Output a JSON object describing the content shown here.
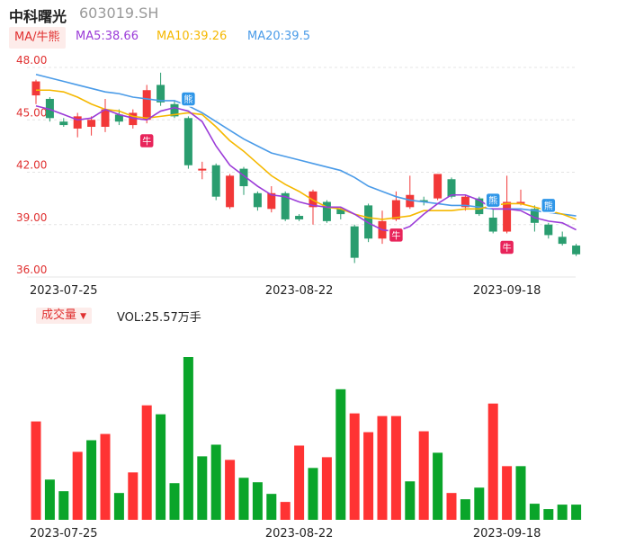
{
  "header": {
    "name": "中科曙光",
    "code": "603019.SH",
    "ma_tag": "MA/牛熊",
    "ma5": "MA5:38.66",
    "ma10": "MA10:39.26",
    "ma20": "MA20:39.5",
    "vol_tag": "成交量",
    "vol_value": "VOL:25.57万手"
  },
  "colors": {
    "up": "#f23838",
    "down": "#2a9d6f",
    "vol_up": "#ff3333",
    "vol_down": "#0aa52a",
    "ma5": "#9b3bd8",
    "ma10": "#f5b800",
    "ma20": "#4a9be8",
    "grid": "#e4e4e4",
    "axis_text": "#e03030"
  },
  "chart_data": [
    {
      "type": "candlestick",
      "y_ticks": [
        "48.00",
        "45.00",
        "42.00",
        "39.00",
        "36.00"
      ],
      "ylim": [
        36,
        48
      ],
      "x_ticks": [
        {
          "index": 2,
          "label": "2023-07-25"
        },
        {
          "index": 19,
          "label": "2023-08-22"
        },
        {
          "index": 34,
          "label": "2023-09-18"
        }
      ],
      "candles": [
        {
          "o": 46.4,
          "c": 47.2,
          "h": 47.3,
          "l": 45.9
        },
        {
          "o": 46.2,
          "c": 45.1,
          "h": 46.3,
          "l": 44.9
        },
        {
          "o": 44.9,
          "c": 44.7,
          "h": 45.1,
          "l": 44.6
        },
        {
          "o": 44.5,
          "c": 45.2,
          "h": 45.4,
          "l": 44.0
        },
        {
          "o": 44.6,
          "c": 45.0,
          "h": 45.2,
          "l": 44.1
        },
        {
          "o": 44.6,
          "c": 45.6,
          "h": 46.2,
          "l": 44.3
        },
        {
          "o": 45.3,
          "c": 44.9,
          "h": 45.6,
          "l": 44.7
        },
        {
          "o": 44.7,
          "c": 45.4,
          "h": 45.6,
          "l": 44.5
        },
        {
          "o": 45.0,
          "c": 46.7,
          "h": 47.0,
          "l": 44.8
        },
        {
          "o": 47.0,
          "c": 46.0,
          "h": 47.7,
          "l": 45.8
        },
        {
          "o": 45.9,
          "c": 45.2,
          "h": 46.1,
          "l": 45.1
        },
        {
          "o": 45.1,
          "c": 42.4,
          "h": 45.2,
          "l": 42.2
        },
        {
          "o": 42.1,
          "c": 42.2,
          "h": 42.6,
          "l": 41.6
        },
        {
          "o": 42.4,
          "c": 40.6,
          "h": 42.5,
          "l": 40.4
        },
        {
          "o": 40.0,
          "c": 41.8,
          "h": 41.9,
          "l": 39.9
        },
        {
          "o": 42.2,
          "c": 41.2,
          "h": 42.3,
          "l": 40.7
        },
        {
          "o": 40.8,
          "c": 40.0,
          "h": 40.9,
          "l": 39.8
        },
        {
          "o": 39.9,
          "c": 40.8,
          "h": 41.2,
          "l": 39.7
        },
        {
          "o": 40.8,
          "c": 39.3,
          "h": 40.9,
          "l": 39.2
        },
        {
          "o": 39.5,
          "c": 39.3,
          "h": 39.6,
          "l": 39.2
        },
        {
          "o": 40.0,
          "c": 40.9,
          "h": 41.0,
          "l": 39.0
        },
        {
          "o": 40.3,
          "c": 39.2,
          "h": 40.4,
          "l": 39.1
        },
        {
          "o": 39.9,
          "c": 39.6,
          "h": 40.0,
          "l": 39.3
        },
        {
          "o": 38.9,
          "c": 37.1,
          "h": 39.0,
          "l": 36.8
        },
        {
          "o": 40.1,
          "c": 38.2,
          "h": 40.2,
          "l": 38.0
        },
        {
          "o": 38.2,
          "c": 39.2,
          "h": 39.8,
          "l": 37.9
        },
        {
          "o": 39.3,
          "c": 40.4,
          "h": 40.9,
          "l": 39.2
        },
        {
          "o": 40.0,
          "c": 40.7,
          "h": 41.8,
          "l": 39.9
        },
        {
          "o": 40.4,
          "c": 40.3,
          "h": 40.6,
          "l": 40.1
        },
        {
          "o": 40.5,
          "c": 41.9,
          "h": 41.9,
          "l": 40.4
        },
        {
          "o": 41.6,
          "c": 40.6,
          "h": 41.7,
          "l": 40.5
        },
        {
          "o": 40.0,
          "c": 40.6,
          "h": 40.7,
          "l": 39.8
        },
        {
          "o": 40.5,
          "c": 39.6,
          "h": 40.6,
          "l": 39.5
        },
        {
          "o": 39.4,
          "c": 38.6,
          "h": 39.9,
          "l": 38.5
        },
        {
          "o": 38.6,
          "c": 40.3,
          "h": 41.8,
          "l": 38.5
        },
        {
          "o": 40.3,
          "c": 40.3,
          "h": 41.0,
          "l": 40.1
        },
        {
          "o": 39.9,
          "c": 39.1,
          "h": 40.1,
          "l": 38.6
        },
        {
          "o": 39.0,
          "c": 38.4,
          "h": 39.1,
          "l": 38.2
        },
        {
          "o": 38.3,
          "c": 37.9,
          "h": 38.6,
          "l": 37.8
        },
        {
          "o": 37.8,
          "c": 37.3,
          "h": 37.9,
          "l": 37.2
        }
      ],
      "ma5": [
        45.8,
        45.6,
        45.3,
        45.0,
        45.1,
        45.6,
        45.3,
        45.1,
        45.0,
        45.5,
        45.7,
        45.5,
        44.9,
        43.5,
        42.4,
        41.8,
        41.2,
        40.7,
        40.6,
        40.3,
        40.1,
        40.0,
        40.0,
        39.6,
        39.1,
        38.7,
        38.6,
        38.9,
        39.6,
        40.2,
        40.7,
        40.7,
        40.4,
        39.9,
        39.9,
        39.8,
        39.4,
        39.2,
        39.1,
        38.7
      ],
      "ma10": [
        46.7,
        46.7,
        46.6,
        46.3,
        45.9,
        45.6,
        45.5,
        45.2,
        45.1,
        45.2,
        45.3,
        45.4,
        45.3,
        44.6,
        43.8,
        43.2,
        42.5,
        41.8,
        41.3,
        40.9,
        40.4,
        40.0,
        39.9,
        39.6,
        39.4,
        39.3,
        39.4,
        39.5,
        39.8,
        39.8,
        39.8,
        39.9,
        39.9,
        40.1,
        40.2,
        40.2,
        40.0,
        39.8,
        39.6,
        39.3
      ],
      "ma20": [
        47.6,
        47.4,
        47.2,
        47.0,
        46.8,
        46.6,
        46.5,
        46.3,
        46.2,
        46.1,
        46.1,
        45.8,
        45.4,
        44.9,
        44.4,
        43.9,
        43.5,
        43.1,
        42.9,
        42.7,
        42.5,
        42.3,
        42.1,
        41.7,
        41.2,
        40.9,
        40.6,
        40.4,
        40.3,
        40.2,
        40.1,
        40.1,
        40.0,
        39.9,
        39.9,
        39.9,
        39.8,
        39.7,
        39.6,
        39.5
      ],
      "markers": [
        {
          "index": 8,
          "label": "牛",
          "kind": "bull",
          "price": 43.8
        },
        {
          "index": 11,
          "label": "熊",
          "kind": "bear",
          "price": 46.2
        },
        {
          "index": 26,
          "label": "牛",
          "kind": "bull",
          "price": 38.4
        },
        {
          "index": 33,
          "label": "熊",
          "kind": "bear",
          "price": 40.4
        },
        {
          "index": 34,
          "label": "牛",
          "kind": "bull",
          "price": 37.7
        },
        {
          "index": 37,
          "label": "熊",
          "kind": "bear",
          "price": 40.1
        }
      ]
    },
    {
      "type": "bar",
      "title": "成交量",
      "x_ticks": [
        {
          "index": 2,
          "label": "2023-07-25"
        },
        {
          "index": 19,
          "label": "2023-08-22"
        },
        {
          "index": 34,
          "label": "2023-09-18"
        }
      ],
      "values": [
        110,
        45,
        32,
        76,
        89,
        96,
        30,
        53,
        128,
        118,
        41,
        182,
        71,
        84,
        67,
        47,
        42,
        29,
        20,
        83,
        58,
        70,
        146,
        119,
        98,
        116,
        116,
        43,
        99,
        75,
        30,
        23,
        36,
        130,
        60,
        60,
        18,
        12,
        17,
        17
      ],
      "up": [
        true,
        false,
        false,
        true,
        false,
        true,
        false,
        true,
        true,
        false,
        false,
        false,
        false,
        false,
        true,
        false,
        false,
        false,
        true,
        true,
        false,
        true,
        false,
        true,
        true,
        true,
        true,
        false,
        true,
        false,
        true,
        false,
        false,
        true,
        true,
        false,
        false,
        false,
        false,
        false
      ],
      "ylim": [
        0,
        182
      ]
    }
  ]
}
